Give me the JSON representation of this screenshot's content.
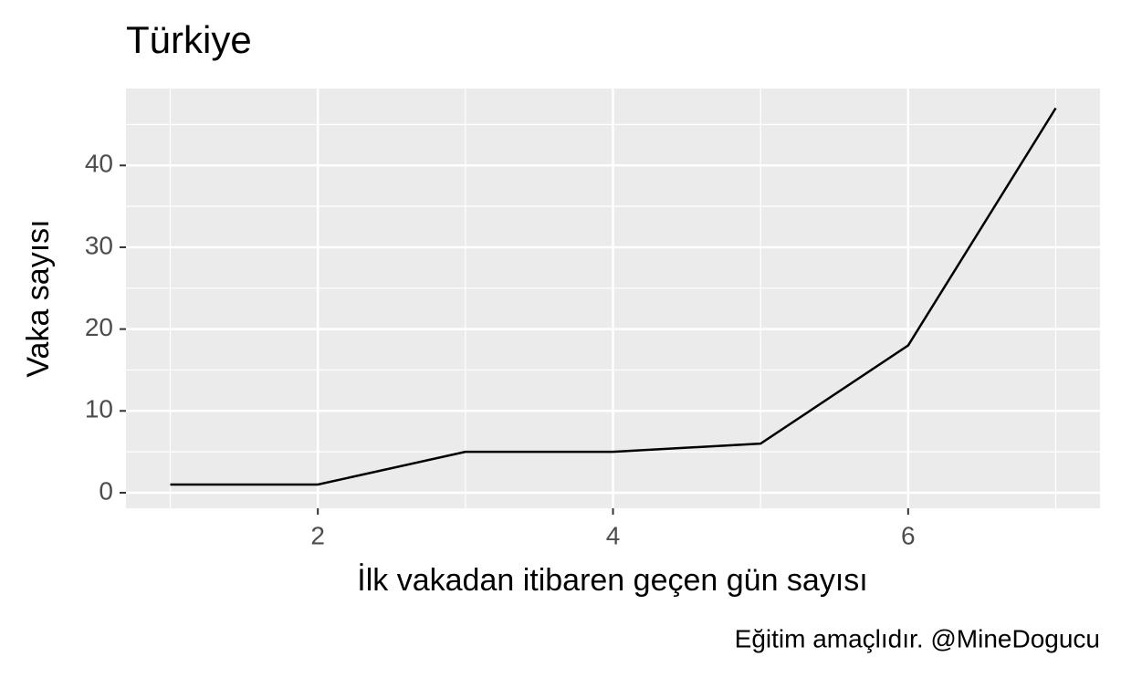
{
  "chart_data": {
    "type": "line",
    "title": "Türkiye",
    "x_label": "İlk vakadan itibaren geçen gün sayısı",
    "y_label": "Vaka sayısı",
    "caption": "Eğitim amaçlıdır. @MineDogucu",
    "x": [
      1,
      2,
      3,
      4,
      5,
      6,
      7
    ],
    "series": [
      {
        "name": "Türkiye",
        "color": "#000000",
        "values": [
          1,
          1,
          5,
          5,
          6,
          18,
          47
        ]
      }
    ],
    "xlim": [
      0.7,
      7.3
    ],
    "xticks": [
      2,
      4,
      6
    ],
    "x_minor_ticks": [
      1,
      3,
      5,
      7
    ],
    "ylim": [
      -1.9,
      49.4
    ],
    "yticks": [
      0,
      10,
      20,
      30,
      40
    ],
    "y_minor_ticks": [
      5,
      15,
      25,
      35,
      45
    ],
    "grid": true
  }
}
